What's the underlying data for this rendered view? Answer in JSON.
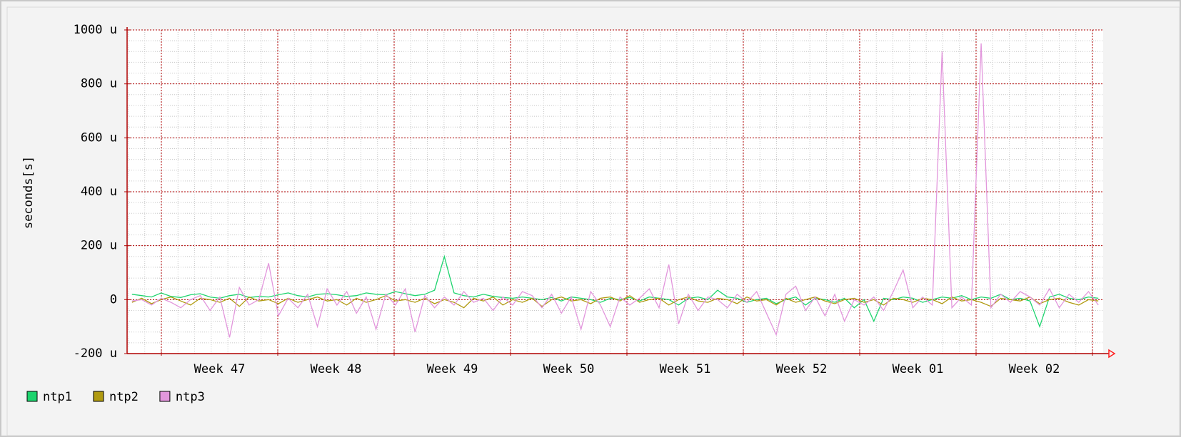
{
  "chart_data": {
    "type": "line",
    "ylabel": "seconds[s]",
    "ylim": [
      -200,
      1000
    ],
    "yticks": [
      {
        "value": -200,
        "label": "-200 u"
      },
      0,
      {
        "value": 200,
        "label": "200 u"
      },
      {
        "value": 400,
        "label": "400 u"
      },
      {
        "value": 600,
        "label": "600 u"
      },
      {
        "value": 800,
        "label": "800 u"
      },
      {
        "value": 1000,
        "label": "1000 u"
      }
    ],
    "xtick_labels": [
      "Week 47",
      "Week 48",
      "Week 49",
      "Week 50",
      "Week 51",
      "Week 52",
      "Week 01",
      "Week 02"
    ],
    "grid": true,
    "series": [
      {
        "name": "ntp1",
        "color": "#1ed46e",
        "values": [
          20,
          15,
          10,
          25,
          12,
          8,
          18,
          22,
          10,
          5,
          15,
          20,
          8,
          12,
          10,
          18,
          25,
          15,
          10,
          20,
          22,
          18,
          12,
          15,
          25,
          20,
          18,
          30,
          22,
          15,
          20,
          35,
          160,
          25,
          15,
          10,
          20,
          12,
          8,
          5,
          10,
          5,
          0,
          8,
          -5,
          10,
          5,
          0,
          -10,
          5,
          0,
          8,
          -5,
          10,
          5,
          0,
          -20,
          5,
          10,
          0,
          35,
          10,
          5,
          -10,
          0,
          5,
          -15,
          0,
          10,
          -20,
          5,
          0,
          -10,
          5,
          -30,
          0,
          -80,
          5,
          0,
          10,
          5,
          -10,
          0,
          10,
          5,
          15,
          0,
          10,
          5,
          20,
          0,
          5,
          -5,
          -100,
          10,
          20,
          5,
          0,
          10,
          5
        ]
      },
      {
        "name": "ntp2",
        "color": "#b09a10",
        "values": [
          -10,
          5,
          -15,
          0,
          10,
          -5,
          -20,
          5,
          0,
          -10,
          5,
          -25,
          10,
          -5,
          0,
          -15,
          5,
          -10,
          0,
          10,
          -5,
          0,
          -20,
          5,
          -10,
          0,
          15,
          -5,
          0,
          -10,
          5,
          -15,
          0,
          -10,
          -30,
          5,
          -5,
          10,
          -20,
          0,
          -10,
          5,
          -25,
          0,
          10,
          -5,
          0,
          -15,
          5,
          10,
          -5,
          15,
          -10,
          0,
          5,
          -20,
          0,
          10,
          -5,
          -10,
          5,
          0,
          -15,
          10,
          -5,
          0,
          -20,
          5,
          -10,
          0,
          10,
          -5,
          -15,
          0,
          5,
          -10,
          0,
          -20,
          5,
          0,
          -10,
          5,
          0,
          -15,
          10,
          -5,
          0,
          -10,
          -25,
          5,
          0,
          -5,
          10,
          -15,
          0,
          5,
          -10,
          -20,
          0,
          -5
        ]
      },
      {
        "name": "ntp3",
        "color": "#e296dc",
        "values": [
          -5,
          0,
          -20,
          5,
          -10,
          -30,
          0,
          15,
          -40,
          10,
          -140,
          45,
          -20,
          0,
          135,
          -60,
          5,
          -30,
          20,
          -100,
          40,
          -20,
          30,
          -50,
          10,
          -110,
          20,
          -20,
          40,
          -120,
          15,
          -30,
          10,
          -20,
          30,
          -10,
          5,
          -40,
          10,
          -20,
          30,
          15,
          -30,
          20,
          -50,
          10,
          -110,
          30,
          -20,
          -100,
          10,
          -20,
          5,
          40,
          -30,
          130,
          -90,
          20,
          -40,
          10,
          0,
          -30,
          20,
          -10,
          30,
          -50,
          -130,
          20,
          50,
          -40,
          10,
          -60,
          20,
          -80,
          0,
          -20,
          10,
          -40,
          30,
          110,
          -30,
          10,
          -20,
          920,
          -30,
          10,
          -20,
          950,
          -30,
          20,
          -10,
          30,
          10,
          -20,
          40,
          -30,
          20,
          -10,
          30,
          -20
        ]
      }
    ]
  }
}
